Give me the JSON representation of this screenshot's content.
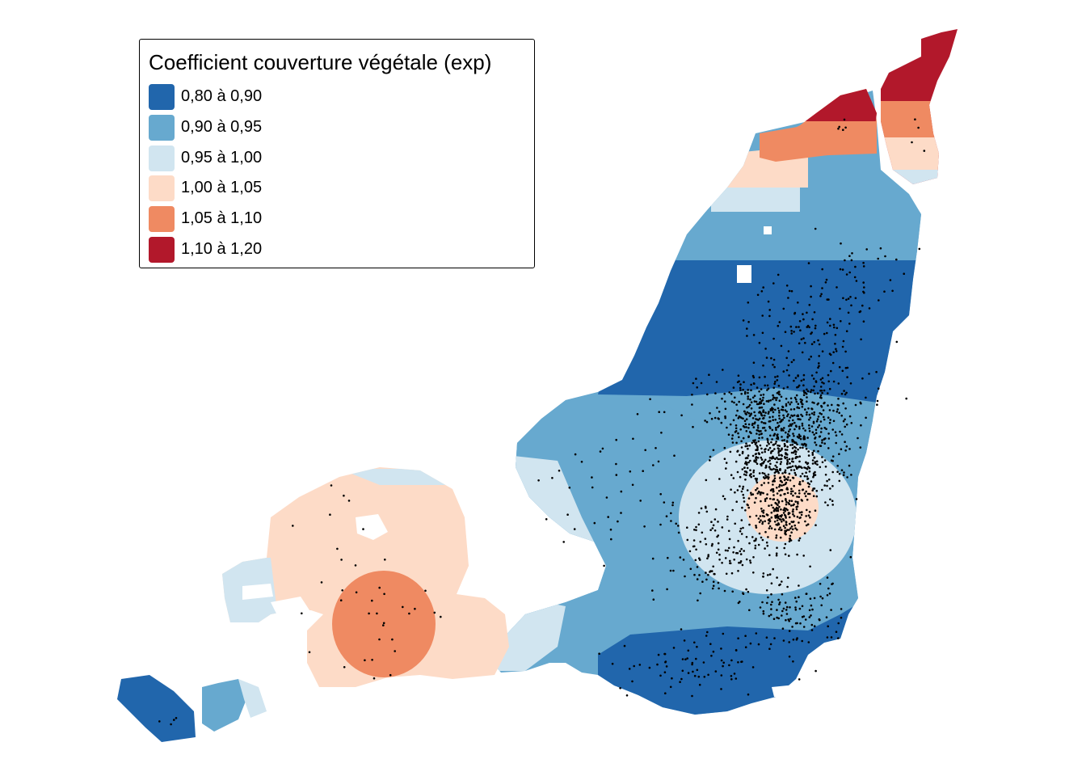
{
  "legend": {
    "title": "Coefficient couverture végétale (exp)",
    "classes": [
      {
        "label": "0,80 à 0,90",
        "color": "#2166ac",
        "min": 0.8,
        "max": 0.9
      },
      {
        "label": "0,90 à 0,95",
        "color": "#67a9cf",
        "min": 0.9,
        "max": 0.95
      },
      {
        "label": "0,95 à 1,00",
        "color": "#d1e5f0",
        "min": 0.95,
        "max": 1.0
      },
      {
        "label": "1,00 à 1,05",
        "color": "#fddbc7",
        "min": 1.0,
        "max": 1.05
      },
      {
        "label": "1,05 à 1,10",
        "color": "#ef8a62",
        "min": 1.05,
        "max": 1.1
      },
      {
        "label": "1,10 à 1,20",
        "color": "#b2182b",
        "min": 1.1,
        "max": 1.2
      }
    ]
  },
  "points": {
    "color": "#000000"
  }
}
